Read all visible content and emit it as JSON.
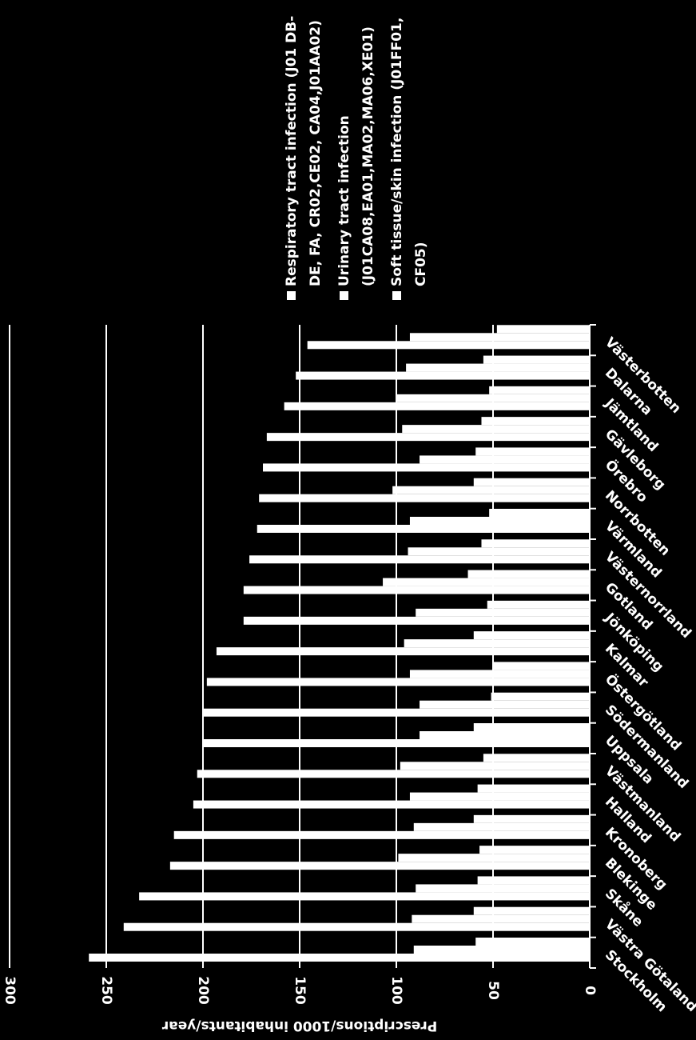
{
  "chart_data": {
    "type": "bar",
    "categories": [
      "Stockholm",
      "Västra Götaland",
      "Skåne",
      "Blekinge",
      "Kronoberg",
      "Halland",
      "Västmanland",
      "Uppsala",
      "Södermanland",
      "Östergötland",
      "Kalmar",
      "Jönköping",
      "Gotland",
      "Västernorrland",
      "Värmland",
      "Norrbotten",
      "Örebro",
      "Gävleborg",
      "Jämtland",
      "Dalarna",
      "Västerbotten"
    ],
    "series": [
      {
        "name": "Respiratory tract infection (J01 DB-DE, FA, CR02,CE02, CA04,J01AA02)",
        "color": "#ffffff",
        "values": [
          259,
          241,
          233,
          217,
          215,
          205,
          203,
          200,
          200,
          198,
          193,
          179,
          179,
          176,
          172,
          171,
          169,
          167,
          158,
          152,
          146
        ]
      },
      {
        "name": "Urinary tract infection (J01CA08,EA01,MA02,MA06,XE01)",
        "color": "#ffffff",
        "values": [
          91,
          92,
          90,
          99,
          91,
          93,
          98,
          88,
          88,
          93,
          96,
          90,
          107,
          94,
          93,
          102,
          88,
          97,
          100,
          95,
          93
        ]
      },
      {
        "name": "Soft tissue/skin infection (J01FF01, CF05)",
        "color": "#ffffff",
        "values": [
          59,
          60,
          58,
          57,
          60,
          58,
          55,
          60,
          51,
          50,
          60,
          53,
          63,
          56,
          52,
          60,
          59,
          56,
          52,
          55,
          48
        ]
      }
    ],
    "y_label": "Prescriptions/1000 inhabitants/year",
    "ylim": [
      0,
      300
    ],
    "yticks": [
      0,
      50,
      100,
      150,
      200,
      250,
      300
    ],
    "grid": true
  }
}
